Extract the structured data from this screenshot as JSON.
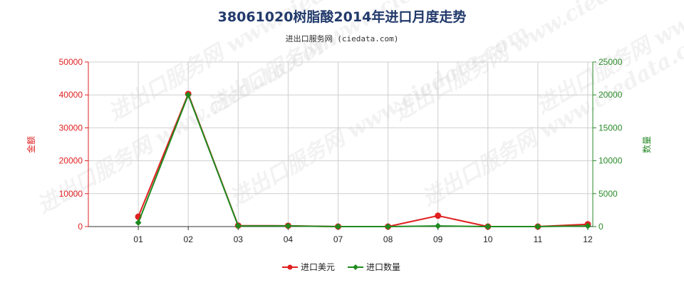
{
  "title": "38061020树脂酸2014年进口月度走势",
  "subtitle": "进出口服务网 (ciedata.com)",
  "watermark": "进出口服务网 www.ciedata.com",
  "chart_data": {
    "type": "line",
    "categories": [
      "01",
      "02",
      "03",
      "04",
      "07",
      "08",
      "09",
      "10",
      "11",
      "12"
    ],
    "y_left": {
      "label": "金额",
      "ticks": [
        "0",
        "10000",
        "20000",
        "30000",
        "40000",
        "50000"
      ],
      "range": [
        0,
        50000
      ],
      "color": "#e02020"
    },
    "y_right": {
      "label": "数量",
      "ticks": [
        "0",
        "5000",
        "10000",
        "15000",
        "20000",
        "25000"
      ],
      "range": [
        0,
        25000
      ],
      "color": "#2a8a2a"
    },
    "grid": true,
    "legend_position": "bottom-center",
    "series": [
      {
        "name": "进口美元",
        "axis": "left",
        "color": "#e02020",
        "values": [
          3000,
          40300,
          300,
          250,
          0,
          0,
          3300,
          0,
          0,
          700
        ]
      },
      {
        "name": "进口数量",
        "axis": "right",
        "color": "#1f8a1f",
        "values": [
          600,
          20000,
          100,
          100,
          0,
          0,
          100,
          0,
          0,
          100
        ]
      }
    ]
  }
}
